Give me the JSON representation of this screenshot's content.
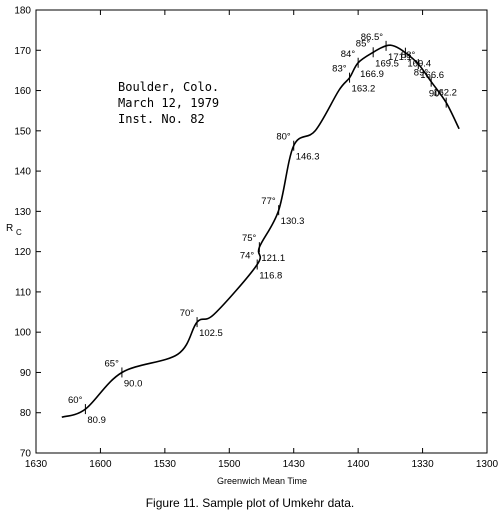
{
  "chart_data": {
    "type": "line",
    "xlabel": "Greenwich Mean Time",
    "ylabel_main": "R",
    "ylabel_sub": "C",
    "xlim": [
      1630,
      1300
    ],
    "ylim": [
      70,
      180
    ],
    "x_reversed": true,
    "grid": false,
    "x_ticks": [
      1630,
      1600,
      1530,
      1500,
      1430,
      1400,
      1330,
      1300
    ],
    "y_ticks": [
      70,
      80,
      90,
      100,
      110,
      120,
      130,
      140,
      150,
      160,
      170,
      180
    ],
    "series": [
      {
        "x": [
          1618,
          1607,
          1550,
          1524,
          1515,
          1507,
          1447,
          1446,
          1437,
          1430,
          1420,
          1409,
          1404,
          1400,
          1353,
          1347,
          1343,
          1338,
          1332,
          1326,
          1319,
          1313
        ],
        "y": [
          78.9,
          80.9,
          90.0,
          94.5,
          102.5,
          104.5,
          116.8,
          121.1,
          130.3,
          146.3,
          150,
          160,
          163.2,
          166.9,
          169.5,
          171.1,
          171.0,
          169.4,
          166.6,
          162.2,
          157,
          150.5
        ]
      }
    ],
    "annotations": [
      {
        "x": 1607,
        "y": 80.9,
        "value": "80.9",
        "angle": "60°"
      },
      {
        "x": 1550,
        "y": 90.0,
        "value": "90.0",
        "angle": "65°"
      },
      {
        "x": 1515,
        "y": 102.5,
        "value": "102.5",
        "angle": "70°"
      },
      {
        "x": 1447,
        "y": 116.8,
        "value": "116.8",
        "angle": "74°"
      },
      {
        "x": 1446,
        "y": 121.1,
        "value": "121.1",
        "angle": "75°"
      },
      {
        "x": 1437,
        "y": 130.3,
        "value": "130.3",
        "angle": "77°"
      },
      {
        "x": 1430,
        "y": 146.3,
        "value": "146.3",
        "angle": "80°"
      },
      {
        "x": 1404,
        "y": 163.2,
        "value": "163.2",
        "angle": "83°"
      },
      {
        "x": 1400,
        "y": 166.9,
        "value": "166.9",
        "angle": "84°"
      },
      {
        "x": 1353,
        "y": 169.5,
        "value": "169.5",
        "angle": "85°"
      },
      {
        "x": 1347,
        "y": 171.1,
        "value": "171.1",
        "angle": "86.5°"
      },
      {
        "x": 1338,
        "y": 169.4,
        "value": "169.4",
        "angle": ""
      },
      {
        "x": 1332,
        "y": 166.6,
        "value": "166.6",
        "angle": "88°"
      },
      {
        "x": 1326,
        "y": 162.2,
        "value": "162.2",
        "angle": "89°"
      },
      {
        "x": 1319,
        "y": 157,
        "value": "",
        "angle": "90°"
      }
    ],
    "note": {
      "line1": "Boulder, Colo.",
      "line2": "March 12, 1979",
      "line3": "Inst. No. 82"
    }
  },
  "caption": "Figure 11. Sample plot of Umkehr data."
}
